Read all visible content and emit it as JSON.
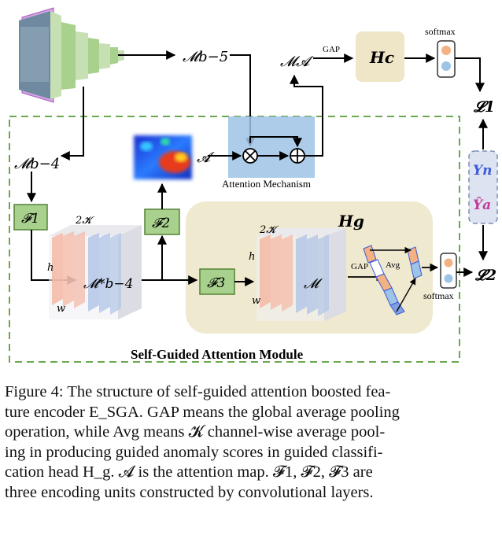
{
  "diagram": {
    "labels": {
      "m_b5": "𝓜b−5",
      "m_b4": "𝓜b−4",
      "m_a": "𝓜𝓐",
      "m_star": "𝓜*b−4",
      "m_hg": "𝓜",
      "attn_a": "𝓐",
      "gap_top": "GAP",
      "gap_hg": "GAP",
      "avg": "Avg",
      "softmax_top": "softmax",
      "softmax_bottom": "softmax",
      "hc": "Hc",
      "hg": "Hg",
      "f1": "𝓕1",
      "f2": "𝓕2",
      "f3": "𝓕3",
      "two_k_left": "2𝓚",
      "two_k_right": "2𝓚",
      "h_left": "h",
      "w_left": "w",
      "h_right": "h",
      "w_right": "w",
      "loss1": "𝓛1",
      "loss2": "𝓛2",
      "yn": "Yn",
      "ya": "Ŷa",
      "attention_mechanism": "Attention Mechanism",
      "module_title": "Self-Guided Attention Module"
    },
    "colors": {
      "dashed_border": "#6aa84f",
      "f_box_fill": "#a9d18e",
      "f_box_stroke": "#548235",
      "hc_fill": "#efe6c8",
      "hg_fill": "#efe9cf",
      "attention_fill": "#9dc3e6",
      "slab_red": "#f4b8a6",
      "slab_blue": "#b4c7e7",
      "label_fill": "#dde3f0",
      "label_text": "#3a5bd9",
      "label_text_hat": "#c0399a"
    }
  },
  "caption": {
    "lines": [
      "Figure 4: The structure of self-guided attention boosted fea-",
      "ture encoder E_SGA. GAP means the global average pooling",
      "operation, while Avg means 𝓚 channel-wise average pool-",
      "ing in producing guided anomaly scores in guided classifi-",
      "cation head H_g. 𝓐 is the attention map. 𝓕1, 𝓕2, 𝓕3 are",
      "three encoding units constructed by convolutional layers."
    ]
  }
}
